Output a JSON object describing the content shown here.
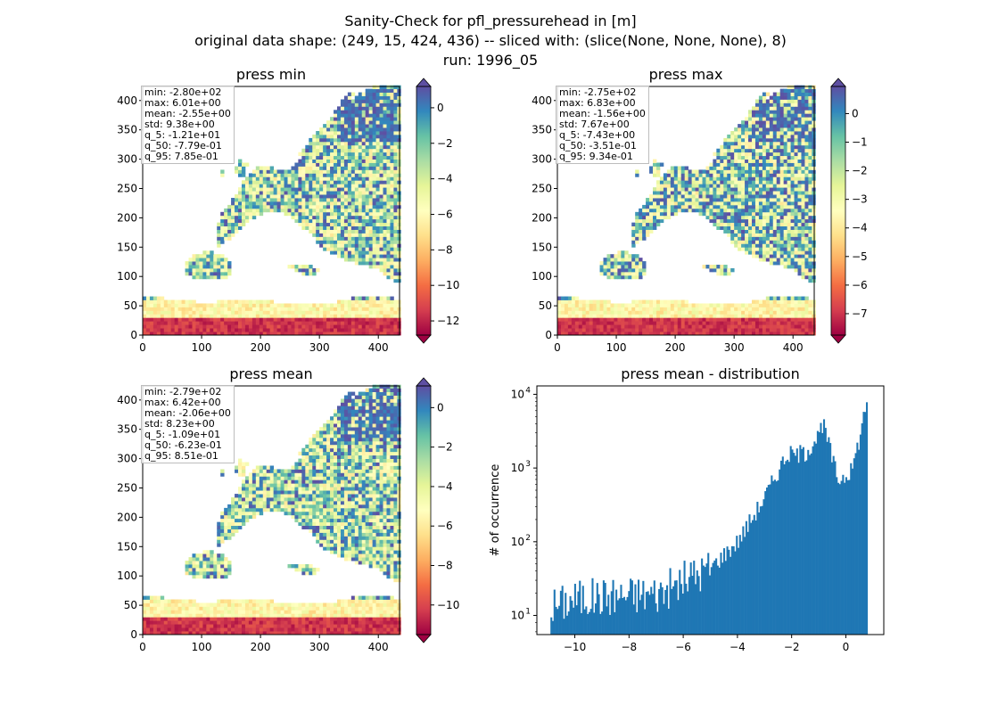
{
  "figure": {
    "title_line1": "Sanity-Check for pfl_pressurehead in [m]",
    "title_line2": "original data shape: (249, 15, 424, 436) -- sliced with: (slice(None, None, None), 8)",
    "title_line3": "run: 1996_05"
  },
  "colors": {
    "colormap": [
      "#9e0142",
      "#d53e4f",
      "#f46d43",
      "#fdae61",
      "#fee08b",
      "#ffffbf",
      "#e6f598",
      "#abdda4",
      "#66c2a5",
      "#3288bd",
      "#5e4fa2"
    ],
    "histogram_bar": "#1f77b4"
  },
  "chart_data": [
    {
      "type": "heatmap",
      "title": "press min",
      "x_ticks": [
        0,
        100,
        200,
        300,
        400
      ],
      "y_ticks": [
        0,
        50,
        100,
        150,
        200,
        250,
        300,
        350,
        400
      ],
      "xlim": [
        0,
        436
      ],
      "ylim": [
        0,
        424
      ],
      "colorbar": {
        "vmin": -12.8,
        "vmax": 1.2,
        "ticks": [
          0,
          -2,
          -4,
          -6,
          -8,
          -10,
          -12
        ],
        "extend": "both"
      },
      "stats": [
        "min: -2.80e+02",
        "max: 6.01e+00",
        "mean: -2.55e+00",
        "std: 9.38e+00",
        "q_5: -1.21e+01",
        "q_50: -7.79e-01",
        "q_95: 7.85e-01"
      ]
    },
    {
      "type": "heatmap",
      "title": "press max",
      "x_ticks": [
        0,
        100,
        200,
        300,
        400
      ],
      "y_ticks": [
        0,
        50,
        100,
        150,
        200,
        250,
        300,
        350,
        400
      ],
      "xlim": [
        0,
        436
      ],
      "ylim": [
        0,
        424
      ],
      "colorbar": {
        "vmin": -7.75,
        "vmax": 0.95,
        "ticks": [
          0,
          -1,
          -2,
          -3,
          -4,
          -5,
          -6,
          -7
        ],
        "extend": "both"
      },
      "stats": [
        "min: -2.75e+02",
        "max: 6.83e+00",
        "mean: -1.56e+00",
        "std: 7.67e+00",
        "q_5: -7.43e+00",
        "q_50: -3.51e-01",
        "q_95: 9.34e-01"
      ]
    },
    {
      "type": "heatmap",
      "title": "press mean",
      "x_ticks": [
        0,
        100,
        200,
        300,
        400
      ],
      "y_ticks": [
        0,
        50,
        100,
        150,
        200,
        250,
        300,
        350,
        400
      ],
      "xlim": [
        0,
        436
      ],
      "ylim": [
        0,
        424
      ],
      "colorbar": {
        "vmin": -11.5,
        "vmax": 1.1,
        "ticks": [
          0,
          -2,
          -4,
          -6,
          -8,
          -10
        ],
        "extend": "both"
      },
      "stats": [
        "min: -2.79e+02",
        "max: 6.42e+00",
        "mean: -2.06e+00",
        "std: 8.23e+00",
        "q_5: -1.09e+01",
        "q_50: -6.23e-01",
        "q_95: 8.51e-01"
      ]
    },
    {
      "type": "bar",
      "title": "press mean - distribution",
      "ylabel": "# of occurrence",
      "y_scale": "log",
      "xlim": [
        -11.4,
        1.4
      ],
      "ylim": [
        5.5,
        13000
      ],
      "x_ticks": [
        -10,
        -8,
        -6,
        -4,
        -2,
        0
      ],
      "x_tick_labels": [
        "−10",
        "−8",
        "−6",
        "−4",
        "−2",
        "0"
      ],
      "y_ticks": [
        10,
        100,
        1000,
        10000
      ],
      "y_tick_labels": [
        "10",
        "10",
        "10",
        "10"
      ],
      "y_tick_exponents": [
        "1",
        "2",
        "3",
        "4"
      ],
      "bin_range": [
        -10.9,
        0.8
      ],
      "key_points": [
        {
          "x": -10.9,
          "y": 13
        },
        {
          "x": -10,
          "y": 17
        },
        {
          "x": -9,
          "y": 18
        },
        {
          "x": -8,
          "y": 19
        },
        {
          "x": -7,
          "y": 20
        },
        {
          "x": -6.4,
          "y": 24
        },
        {
          "x": -6,
          "y": 30
        },
        {
          "x": -5,
          "y": 45
        },
        {
          "x": -4,
          "y": 100
        },
        {
          "x": -3,
          "y": 400
        },
        {
          "x": -2.2,
          "y": 1500
        },
        {
          "x": -1.5,
          "y": 1600
        },
        {
          "x": -0.8,
          "y": 3600
        },
        {
          "x": -0.3,
          "y": 700
        },
        {
          "x": 0.2,
          "y": 900
        },
        {
          "x": 0.55,
          "y": 3000
        },
        {
          "x": 0.75,
          "y": 8000
        }
      ]
    }
  ]
}
